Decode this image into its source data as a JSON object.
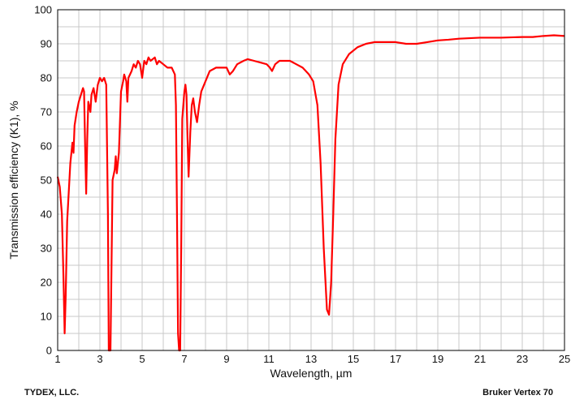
{
  "chart_data": {
    "type": "line",
    "xlabel": "Wavelength, µm",
    "ylabel": "Transmission efficiency (K1), %",
    "xlim": [
      1,
      25
    ],
    "ylim": [
      0,
      100
    ],
    "x_ticks": [
      "1",
      "3",
      "5",
      "7",
      "9",
      "11",
      "13",
      "15",
      "17",
      "19",
      "21",
      "23",
      "25"
    ],
    "y_ticks": [
      "0",
      "10",
      "20",
      "30",
      "40",
      "50",
      "60",
      "70",
      "80",
      "90",
      "100"
    ],
    "grid": true,
    "series": [
      {
        "color": "#ff0000",
        "points": [
          [
            1.0,
            51
          ],
          [
            1.1,
            48
          ],
          [
            1.2,
            40
          ],
          [
            1.28,
            20
          ],
          [
            1.33,
            5
          ],
          [
            1.38,
            16
          ],
          [
            1.45,
            38
          ],
          [
            1.6,
            55
          ],
          [
            1.7,
            61
          ],
          [
            1.75,
            58
          ],
          [
            1.8,
            66
          ],
          [
            1.9,
            70
          ],
          [
            2.0,
            73
          ],
          [
            2.1,
            75
          ],
          [
            2.2,
            77
          ],
          [
            2.25,
            76
          ],
          [
            2.3,
            60
          ],
          [
            2.35,
            46
          ],
          [
            2.4,
            62
          ],
          [
            2.45,
            73
          ],
          [
            2.55,
            70
          ],
          [
            2.6,
            75
          ],
          [
            2.7,
            77
          ],
          [
            2.8,
            73
          ],
          [
            2.9,
            78
          ],
          [
            3.0,
            80
          ],
          [
            3.1,
            79
          ],
          [
            3.2,
            80
          ],
          [
            3.3,
            78
          ],
          [
            3.38,
            40
          ],
          [
            3.42,
            0
          ],
          [
            3.5,
            0
          ],
          [
            3.55,
            25
          ],
          [
            3.6,
            50
          ],
          [
            3.7,
            53
          ],
          [
            3.75,
            57
          ],
          [
            3.8,
            52
          ],
          [
            3.9,
            58
          ],
          [
            4.0,
            76
          ],
          [
            4.1,
            79
          ],
          [
            4.15,
            81
          ],
          [
            4.25,
            79
          ],
          [
            4.3,
            73
          ],
          [
            4.35,
            80
          ],
          [
            4.5,
            82
          ],
          [
            4.6,
            84
          ],
          [
            4.7,
            83
          ],
          [
            4.8,
            85
          ],
          [
            4.9,
            84
          ],
          [
            5.0,
            80
          ],
          [
            5.1,
            85
          ],
          [
            5.2,
            84
          ],
          [
            5.3,
            86
          ],
          [
            5.4,
            85
          ],
          [
            5.6,
            86
          ],
          [
            5.7,
            84
          ],
          [
            5.8,
            85
          ],
          [
            6.0,
            84
          ],
          [
            6.2,
            83
          ],
          [
            6.4,
            83
          ],
          [
            6.55,
            81
          ],
          [
            6.6,
            72
          ],
          [
            6.65,
            40
          ],
          [
            6.7,
            5
          ],
          [
            6.75,
            0
          ],
          [
            6.8,
            0
          ],
          [
            6.85,
            30
          ],
          [
            6.9,
            68
          ],
          [
            7.0,
            76
          ],
          [
            7.05,
            78
          ],
          [
            7.1,
            75
          ],
          [
            7.15,
            62
          ],
          [
            7.2,
            51
          ],
          [
            7.28,
            64
          ],
          [
            7.35,
            72
          ],
          [
            7.42,
            74
          ],
          [
            7.5,
            70
          ],
          [
            7.6,
            67
          ],
          [
            7.7,
            72
          ],
          [
            7.8,
            76
          ],
          [
            8.0,
            79
          ],
          [
            8.2,
            82
          ],
          [
            8.5,
            83
          ],
          [
            8.8,
            83
          ],
          [
            9.0,
            83
          ],
          [
            9.15,
            81
          ],
          [
            9.3,
            82
          ],
          [
            9.5,
            84
          ],
          [
            9.8,
            85
          ],
          [
            10.0,
            85.5
          ],
          [
            10.3,
            85
          ],
          [
            10.6,
            84.5
          ],
          [
            10.9,
            84
          ],
          [
            11.05,
            83
          ],
          [
            11.15,
            82
          ],
          [
            11.3,
            84
          ],
          [
            11.5,
            85
          ],
          [
            11.8,
            85
          ],
          [
            12.0,
            85
          ],
          [
            12.3,
            84
          ],
          [
            12.6,
            83
          ],
          [
            12.9,
            81
          ],
          [
            13.1,
            79
          ],
          [
            13.3,
            72
          ],
          [
            13.45,
            55
          ],
          [
            13.6,
            30
          ],
          [
            13.75,
            12
          ],
          [
            13.85,
            10.5
          ],
          [
            13.95,
            20
          ],
          [
            14.05,
            40
          ],
          [
            14.15,
            62
          ],
          [
            14.3,
            78
          ],
          [
            14.5,
            84
          ],
          [
            14.8,
            87
          ],
          [
            15.2,
            89
          ],
          [
            15.6,
            90
          ],
          [
            16.0,
            90.5
          ],
          [
            16.5,
            90.5
          ],
          [
            17.0,
            90.5
          ],
          [
            17.5,
            90
          ],
          [
            18.0,
            90
          ],
          [
            18.5,
            90.5
          ],
          [
            19.0,
            91
          ],
          [
            19.5,
            91.2
          ],
          [
            20.0,
            91.5
          ],
          [
            21.0,
            91.8
          ],
          [
            22.0,
            91.8
          ],
          [
            23.0,
            92
          ],
          [
            23.5,
            92
          ],
          [
            24.0,
            92.3
          ],
          [
            24.5,
            92.5
          ],
          [
            25.0,
            92.3
          ]
        ]
      }
    ]
  },
  "footer": {
    "left": "TYDEX, LLC.",
    "right": "Bruker Vertex 70"
  }
}
